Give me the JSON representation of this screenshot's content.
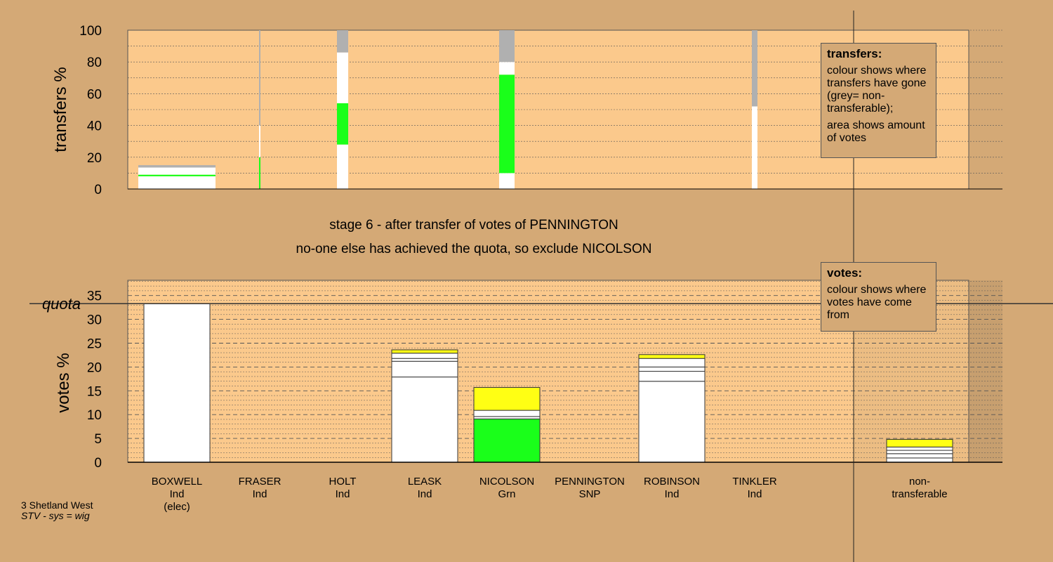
{
  "top_chart": {
    "ylabel": "transfers %",
    "yticks": [
      "0",
      "20",
      "40",
      "60",
      "80",
      "100"
    ]
  },
  "bottom_chart": {
    "ylabel": "votes %",
    "quota_label": "quota",
    "yticks": [
      "0",
      "5",
      "10",
      "15",
      "20",
      "25",
      "30",
      "35"
    ]
  },
  "stage": {
    "line1": "stage 6 - after transfer of votes of PENNINGTON",
    "line2": "no-one else has achieved the quota, so exclude NICOLSON"
  },
  "legend_transfers": {
    "title": "transfers:",
    "p1": "colour shows where transfers have gone (grey= non-transferable);",
    "p2": "area shows amount of votes"
  },
  "legend_votes": {
    "title": "votes:",
    "p1": "colour shows where votes have come from"
  },
  "credit": {
    "line1": "3 Shetland West",
    "line2": "STV - sys = wig"
  },
  "candidates": [
    {
      "name": "BOXWELL",
      "party": "Ind",
      "extra": "(elec)"
    },
    {
      "name": "FRASER",
      "party": "Ind",
      "extra": ""
    },
    {
      "name": "HOLT",
      "party": "Ind",
      "extra": ""
    },
    {
      "name": "LEASK",
      "party": "Ind",
      "extra": ""
    },
    {
      "name": "NICOLSON",
      "party": "Grn",
      "extra": ""
    },
    {
      "name": "PENNINGTON",
      "party": "SNP",
      "extra": ""
    },
    {
      "name": "ROBINSON",
      "party": "Ind",
      "extra": ""
    },
    {
      "name": "TINKLER",
      "party": "Ind",
      "extra": ""
    },
    {
      "name": "non-",
      "party": "transferable",
      "extra": ""
    }
  ],
  "colors": {
    "background": "#d4a976",
    "plot": "#fbc98c",
    "green": "#1aff1a",
    "yellow": "#ffff14",
    "grey": "#b0b0b0",
    "white": "#ffffff"
  },
  "chart_data": [
    {
      "type": "bar",
      "title": "",
      "ylabel": "transfers %",
      "ylim": [
        0,
        100
      ],
      "categories": [
        "BOXWELL",
        "FRASER",
        "HOLT",
        "LEASK",
        "NICOLSON",
        "PENNINGTON",
        "ROBINSON",
        "TINKLER"
      ],
      "segments": [
        {
          "category": "BOXWELL",
          "stack": [
            {
              "from": 0,
              "to": 8,
              "color": "white"
            },
            {
              "from": 8,
              "to": 9,
              "color": "green"
            },
            {
              "from": 9,
              "to": 13.5,
              "color": "white"
            },
            {
              "from": 13.5,
              "to": 15,
              "color": "grey"
            }
          ]
        },
        {
          "category": "FRASER",
          "stack": [
            {
              "from": 0,
              "to": 20,
              "color": "green"
            },
            {
              "from": 20,
              "to": 40,
              "color": "white"
            },
            {
              "from": 40,
              "to": 100,
              "color": "grey"
            }
          ]
        },
        {
          "category": "HOLT",
          "stack": [
            {
              "from": 0,
              "to": 28,
              "color": "white"
            },
            {
              "from": 28,
              "to": 54,
              "color": "green"
            },
            {
              "from": 54,
              "to": 86,
              "color": "white"
            },
            {
              "from": 86,
              "to": 100,
              "color": "grey"
            }
          ]
        },
        {
          "category": "NICOLSON",
          "stack": [
            {
              "from": 0,
              "to": 10,
              "color": "white"
            },
            {
              "from": 10,
              "to": 72,
              "color": "green"
            },
            {
              "from": 72,
              "to": 80,
              "color": "white"
            },
            {
              "from": 80,
              "to": 100,
              "color": "grey"
            }
          ]
        },
        {
          "category": "TINKLER",
          "stack": [
            {
              "from": 0,
              "to": 52,
              "color": "white"
            },
            {
              "from": 52,
              "to": 100,
              "color": "grey"
            }
          ]
        }
      ]
    },
    {
      "type": "bar",
      "title": "",
      "ylabel": "votes %",
      "ylim": [
        0,
        38
      ],
      "quota": 33.3,
      "categories": [
        "BOXWELL",
        "FRASER",
        "HOLT",
        "LEASK",
        "NICOLSON",
        "PENNINGTON",
        "ROBINSON",
        "TINKLER",
        "non-transferable"
      ],
      "stacks": [
        [
          {
            "v": 33.3,
            "color": "white"
          }
        ],
        [],
        [],
        [
          {
            "v": 17.9,
            "color": "white"
          },
          {
            "v": 3.3,
            "color": "white"
          },
          {
            "v": 0.6,
            "color": "white"
          },
          {
            "v": 1.1,
            "color": "white"
          },
          {
            "v": 0.7,
            "color": "yellow"
          }
        ],
        [
          {
            "v": 9.1,
            "color": "green"
          },
          {
            "v": 0.5,
            "color": "white"
          },
          {
            "v": 1.3,
            "color": "white"
          },
          {
            "v": 4.8,
            "color": "yellow"
          }
        ],
        [],
        [
          {
            "v": 17.0,
            "color": "white"
          },
          {
            "v": 2.1,
            "color": "white"
          },
          {
            "v": 0.9,
            "color": "white"
          },
          {
            "v": 1.8,
            "color": "white"
          },
          {
            "v": 0.8,
            "color": "yellow"
          }
        ],
        [],
        [
          {
            "v": 0.9,
            "color": "white"
          },
          {
            "v": 0.9,
            "color": "white"
          },
          {
            "v": 0.7,
            "color": "white"
          },
          {
            "v": 0.7,
            "color": "white"
          },
          {
            "v": 1.6,
            "color": "yellow"
          }
        ]
      ]
    }
  ]
}
